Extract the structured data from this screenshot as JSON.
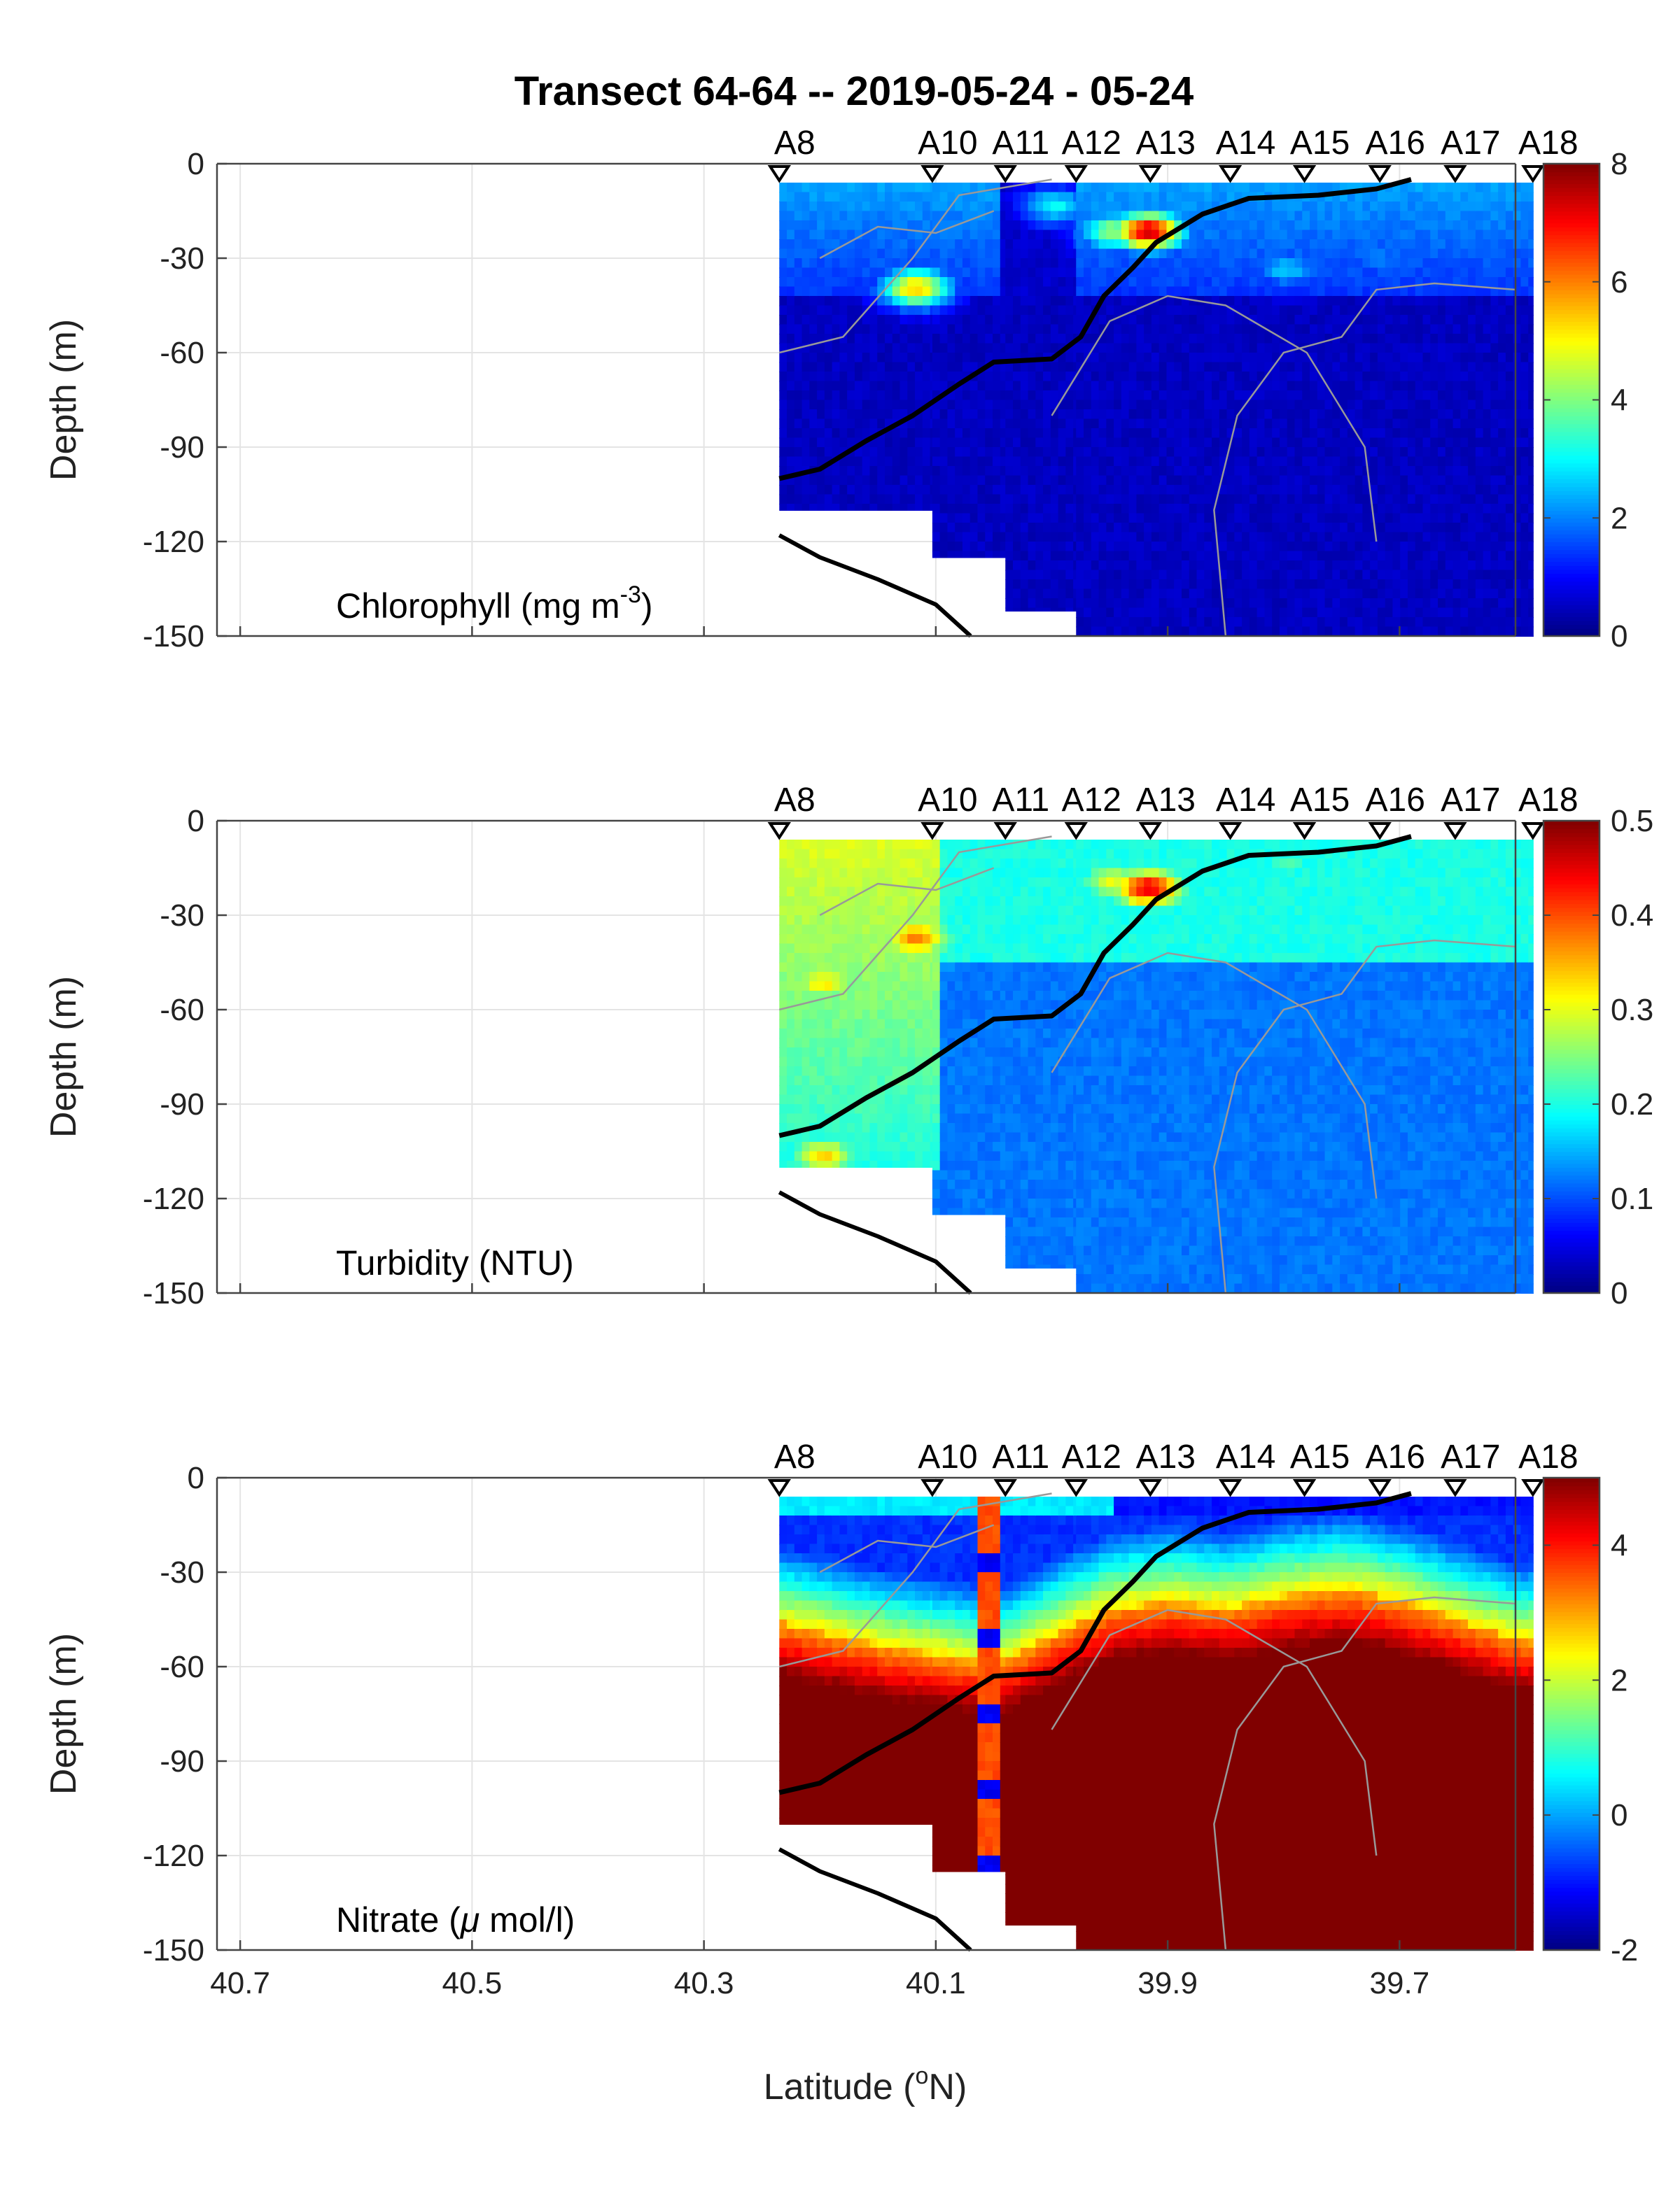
{
  "figure": {
    "title": "Transect 64-64 -- 2019-05-24 - 05-24",
    "xlabel": "Latitude (",
    "xlabel_sup": "o",
    "xlabel_tail": "N)",
    "ylabel": "Depth (m)"
  },
  "chart_data": [
    {
      "type": "heatmap",
      "variable_label": "Chlorophyll (mg m",
      "variable_label_sup": "-3",
      "variable_label_tail": ")",
      "x_ticks": [
        "40.7",
        "40.5",
        "40.3",
        "40.1",
        "39.9",
        "39.7"
      ],
      "y_ticks": [
        "0",
        "-30",
        "-60",
        "-90",
        "-120",
        "-150"
      ],
      "xlim": [
        40.72,
        39.6
      ],
      "ylim": [
        -150,
        0
      ],
      "colorbar": {
        "min": 0,
        "max": 8,
        "ticks": [
          "0",
          "2",
          "4",
          "6",
          "8"
        ]
      },
      "colormap": "jet",
      "stations": [
        {
          "name": "A8",
          "lat": 40.235
        },
        {
          "name": "A10",
          "lat": 40.103
        },
        {
          "name": "A11",
          "lat": 40.04
        },
        {
          "name": "A12",
          "lat": 39.979
        },
        {
          "name": "A13",
          "lat": 39.915
        },
        {
          "name": "A14",
          "lat": 39.846
        },
        {
          "name": "A15",
          "lat": 39.782
        },
        {
          "name": "A16",
          "lat": 39.717
        },
        {
          "name": "A17",
          "lat": 39.652
        },
        {
          "name": "A18",
          "lat": 39.585
        }
      ],
      "bold_contour": [
        [
          40.235,
          -100
        ],
        [
          40.2,
          -97
        ],
        [
          40.16,
          -88
        ],
        [
          40.12,
          -80
        ],
        [
          40.08,
          -70
        ],
        [
          40.05,
          -63
        ],
        [
          40.0,
          -62
        ],
        [
          39.975,
          -55
        ],
        [
          39.955,
          -42
        ],
        [
          39.93,
          -33
        ],
        [
          39.91,
          -25
        ],
        [
          39.87,
          -16
        ],
        [
          39.83,
          -11
        ],
        [
          39.77,
          -10
        ],
        [
          39.72,
          -8
        ],
        [
          39.69,
          -5
        ]
      ],
      "bottom_line": [
        [
          40.235,
          -118
        ],
        [
          40.2,
          -125
        ],
        [
          40.15,
          -132
        ],
        [
          40.1,
          -140
        ],
        [
          40.07,
          -150
        ]
      ],
      "data_extent": [
        {
          "lat_from": 40.235,
          "lat_to": 40.103,
          "depth_max": -110
        },
        {
          "lat_from": 40.103,
          "lat_to": 40.04,
          "depth_max": -125
        },
        {
          "lat_from": 40.04,
          "lat_to": 39.979,
          "depth_max": -142
        },
        {
          "lat_from": 39.979,
          "lat_to": 39.585,
          "depth_max": -150
        }
      ],
      "features": [
        {
          "lat": 40.12,
          "depth": -38,
          "value": 5.5
        },
        {
          "lat": 39.92,
          "depth": -20,
          "value": 7.5
        },
        {
          "lat": 39.95,
          "depth": -20,
          "value": 4.2
        },
        {
          "lat": 40.0,
          "depth": -12,
          "value": 3.0
        },
        {
          "lat": 39.8,
          "depth": -32,
          "value": 2.6
        },
        {
          "lat": 39.72,
          "depth": -28,
          "value": 2.0
        }
      ],
      "background_value": 0.5
    },
    {
      "type": "heatmap",
      "variable_label": "Turbidity (NTU)",
      "x_ticks": [
        "40.7",
        "40.5",
        "40.3",
        "40.1",
        "39.9",
        "39.7"
      ],
      "y_ticks": [
        "0",
        "-30",
        "-60",
        "-90",
        "-120",
        "-150"
      ],
      "xlim": [
        40.72,
        39.6
      ],
      "ylim": [
        -150,
        0
      ],
      "colorbar": {
        "min": 0,
        "max": 0.5,
        "ticks": [
          "0",
          "0.1",
          "0.2",
          "0.3",
          "0.4",
          "0.5"
        ]
      },
      "colormap": "jet",
      "stations": [
        {
          "name": "A8",
          "lat": 40.235
        },
        {
          "name": "A10",
          "lat": 40.103
        },
        {
          "name": "A11",
          "lat": 40.04
        },
        {
          "name": "A12",
          "lat": 39.979
        },
        {
          "name": "A13",
          "lat": 39.915
        },
        {
          "name": "A14",
          "lat": 39.846
        },
        {
          "name": "A15",
          "lat": 39.782
        },
        {
          "name": "A16",
          "lat": 39.717
        },
        {
          "name": "A17",
          "lat": 39.652
        },
        {
          "name": "A18",
          "lat": 39.585
        }
      ],
      "bold_contour": [
        [
          40.235,
          -100
        ],
        [
          40.2,
          -97
        ],
        [
          40.16,
          -88
        ],
        [
          40.12,
          -80
        ],
        [
          40.08,
          -70
        ],
        [
          40.05,
          -63
        ],
        [
          40.0,
          -62
        ],
        [
          39.975,
          -55
        ],
        [
          39.955,
          -42
        ],
        [
          39.93,
          -33
        ],
        [
          39.91,
          -25
        ],
        [
          39.87,
          -16
        ],
        [
          39.83,
          -11
        ],
        [
          39.77,
          -10
        ],
        [
          39.72,
          -8
        ],
        [
          39.69,
          -5
        ]
      ],
      "bottom_line": [
        [
          40.235,
          -118
        ],
        [
          40.2,
          -125
        ],
        [
          40.15,
          -132
        ],
        [
          40.1,
          -140
        ],
        [
          40.07,
          -150
        ]
      ],
      "data_extent": [
        {
          "lat_from": 40.235,
          "lat_to": 40.103,
          "depth_max": -110
        },
        {
          "lat_from": 40.103,
          "lat_to": 40.04,
          "depth_max": -125
        },
        {
          "lat_from": 40.04,
          "lat_to": 39.979,
          "depth_max": -142
        },
        {
          "lat_from": 39.979,
          "lat_to": 39.585,
          "depth_max": -150
        }
      ],
      "features": [
        {
          "lat": 40.2,
          "depth": -50,
          "value": 0.32
        },
        {
          "lat": 40.12,
          "depth": -36,
          "value": 0.38
        },
        {
          "lat": 39.92,
          "depth": -20,
          "value": 0.45
        },
        {
          "lat": 39.95,
          "depth": -18,
          "value": 0.3
        },
        {
          "lat": 40.2,
          "depth": -105,
          "value": 0.33
        },
        {
          "lat": 39.8,
          "depth": -12,
          "value": 0.22
        }
      ],
      "background_value": 0.12
    },
    {
      "type": "heatmap",
      "variable_label": "Nitrate (",
      "variable_label_greek": "μ",
      "variable_label_tail": " mol/l)",
      "x_ticks": [
        "40.7",
        "40.5",
        "40.3",
        "40.1",
        "39.9",
        "39.7"
      ],
      "y_ticks": [
        "0",
        "-30",
        "-60",
        "-90",
        "-120",
        "-150"
      ],
      "xlim": [
        40.72,
        39.6
      ],
      "ylim": [
        -150,
        0
      ],
      "colorbar": {
        "min": -2,
        "max": 5,
        "ticks": [
          "-2",
          "0",
          "2",
          "4"
        ]
      },
      "colormap": "jet",
      "stations": [
        {
          "name": "A8",
          "lat": 40.235
        },
        {
          "name": "A10",
          "lat": 40.103
        },
        {
          "name": "A11",
          "lat": 40.04
        },
        {
          "name": "A12",
          "lat": 39.979
        },
        {
          "name": "A13",
          "lat": 39.915
        },
        {
          "name": "A14",
          "lat": 39.846
        },
        {
          "name": "A15",
          "lat": 39.782
        },
        {
          "name": "A16",
          "lat": 39.717
        },
        {
          "name": "A17",
          "lat": 39.652
        },
        {
          "name": "A18",
          "lat": 39.585
        }
      ],
      "bold_contour": [
        [
          40.235,
          -100
        ],
        [
          40.2,
          -97
        ],
        [
          40.16,
          -88
        ],
        [
          40.12,
          -80
        ],
        [
          40.08,
          -70
        ],
        [
          40.05,
          -63
        ],
        [
          40.0,
          -62
        ],
        [
          39.975,
          -55
        ],
        [
          39.955,
          -42
        ],
        [
          39.93,
          -33
        ],
        [
          39.91,
          -25
        ],
        [
          39.87,
          -16
        ],
        [
          39.83,
          -11
        ],
        [
          39.77,
          -10
        ],
        [
          39.72,
          -8
        ],
        [
          39.69,
          -5
        ]
      ],
      "bottom_line": [
        [
          40.235,
          -118
        ],
        [
          40.2,
          -125
        ],
        [
          40.15,
          -132
        ],
        [
          40.1,
          -140
        ],
        [
          40.07,
          -150
        ]
      ],
      "data_extent": [
        {
          "lat_from": 40.235,
          "lat_to": 40.103,
          "depth_max": -110
        },
        {
          "lat_from": 40.103,
          "lat_to": 40.04,
          "depth_max": -125
        },
        {
          "lat_from": 40.04,
          "lat_to": 39.979,
          "depth_max": -142
        },
        {
          "lat_from": 39.979,
          "lat_to": 39.585,
          "depth_max": -150
        }
      ],
      "nitracline": [
        [
          40.235,
          -45
        ],
        [
          40.15,
          -52
        ],
        [
          40.05,
          -58
        ],
        [
          40.0,
          -48
        ],
        [
          39.95,
          -40
        ],
        [
          39.9,
          -38
        ],
        [
          39.85,
          -40
        ],
        [
          39.8,
          -36
        ],
        [
          39.75,
          -34
        ],
        [
          39.7,
          -38
        ],
        [
          39.6,
          -50
        ]
      ],
      "column_artifact": {
        "lat_from": 40.065,
        "lat_to": 40.045,
        "value": 3.6
      }
    }
  ]
}
